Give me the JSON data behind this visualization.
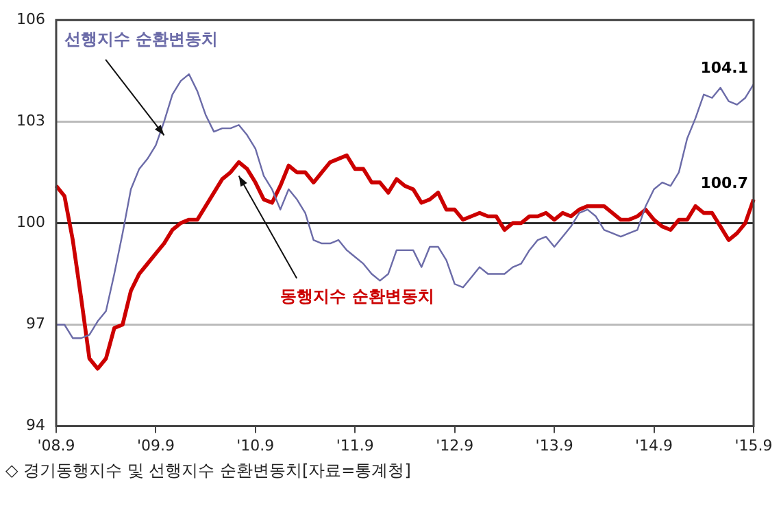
{
  "chart_data": {
    "type": "line",
    "categories": [
      "'08.9",
      null,
      null,
      null,
      null,
      null,
      null,
      null,
      null,
      null,
      null,
      null,
      "'09.9",
      null,
      null,
      null,
      null,
      null,
      null,
      null,
      null,
      null,
      null,
      null,
      "'10.9",
      null,
      null,
      null,
      null,
      null,
      null,
      null,
      null,
      null,
      null,
      null,
      "'11.9",
      null,
      null,
      null,
      null,
      null,
      null,
      null,
      null,
      null,
      null,
      null,
      "'12.9",
      null,
      null,
      null,
      null,
      null,
      null,
      null,
      null,
      null,
      null,
      null,
      "'13.9",
      null,
      null,
      null,
      null,
      null,
      null,
      null,
      null,
      null,
      null,
      null,
      "'14.9",
      null,
      null,
      null,
      null,
      null,
      null,
      null,
      null,
      null,
      null,
      null,
      "'15.9"
    ],
    "series": [
      {
        "name": "선행지수 순환변동치",
        "color": "#6b6ba8",
        "values": [
          97.0,
          97.0,
          96.6,
          96.6,
          96.7,
          97.1,
          97.4,
          98.5,
          99.7,
          101.0,
          101.6,
          101.9,
          102.3,
          103.0,
          103.8,
          104.2,
          104.4,
          103.9,
          103.2,
          102.7,
          102.8,
          102.8,
          102.9,
          102.6,
          102.2,
          101.4,
          101.0,
          100.4,
          101.0,
          100.7,
          100.3,
          99.5,
          99.4,
          99.4,
          99.5,
          99.2,
          99.0,
          98.8,
          98.5,
          98.3,
          98.5,
          99.2,
          99.2,
          99.2,
          98.7,
          99.3,
          99.3,
          98.9,
          98.2,
          98.1,
          98.4,
          98.7,
          98.5,
          98.5,
          98.5,
          98.7,
          98.8,
          99.2,
          99.5,
          99.6,
          99.3,
          99.6,
          99.9,
          100.3,
          100.4,
          100.2,
          99.8,
          99.7,
          99.6,
          99.7,
          99.8,
          100.5,
          101.0,
          101.2,
          101.1,
          101.5,
          102.5,
          103.1,
          103.8,
          103.7,
          104.0,
          103.6,
          103.5,
          103.7,
          104.1
        ],
        "value_labels": [
          null,
          null,
          null,
          null,
          null,
          null,
          null,
          null,
          null,
          null,
          null,
          null,
          null,
          null,
          null,
          null,
          null,
          null,
          null,
          null,
          null,
          null,
          null,
          null,
          null,
          null,
          null,
          null,
          null,
          null,
          null,
          null,
          null,
          null,
          null,
          null,
          null,
          null,
          null,
          null,
          null,
          null,
          null,
          null,
          null,
          null,
          null,
          null,
          null,
          null,
          null,
          null,
          null,
          null,
          null,
          null,
          null,
          null,
          null,
          null,
          null,
          null,
          null,
          null,
          null,
          null,
          null,
          null,
          null,
          null,
          null,
          null,
          null,
          null,
          null,
          null,
          null,
          null,
          null,
          null,
          null,
          null,
          null,
          null,
          "104.1"
        ]
      },
      {
        "name": "동행지수 순환변동치",
        "color": "#cc0000",
        "values": [
          101.1,
          100.8,
          99.5,
          97.8,
          96.0,
          95.7,
          96.0,
          96.9,
          97.0,
          98.0,
          98.5,
          98.8,
          99.1,
          99.4,
          99.8,
          100.0,
          100.1,
          100.1,
          100.5,
          100.9,
          101.3,
          101.5,
          101.8,
          101.6,
          101.2,
          100.7,
          100.6,
          101.1,
          101.7,
          101.5,
          101.5,
          101.2,
          101.5,
          101.8,
          101.9,
          102.0,
          101.6,
          101.6,
          101.2,
          101.2,
          100.9,
          101.3,
          101.1,
          101.0,
          100.6,
          100.7,
          100.9,
          100.4,
          100.4,
          100.1,
          100.2,
          100.3,
          100.2,
          100.2,
          99.8,
          100.0,
          100.0,
          100.2,
          100.2,
          100.3,
          100.1,
          100.3,
          100.2,
          100.4,
          100.5,
          100.5,
          100.5,
          100.3,
          100.1,
          100.1,
          100.2,
          100.4,
          100.1,
          99.9,
          99.8,
          100.1,
          100.1,
          100.5,
          100.3,
          100.3,
          99.9,
          99.5,
          99.7,
          100.0,
          100.7
        ],
        "value_labels": [
          null,
          null,
          null,
          null,
          null,
          null,
          null,
          null,
          null,
          null,
          null,
          null,
          null,
          null,
          null,
          null,
          null,
          null,
          null,
          null,
          null,
          null,
          null,
          null,
          null,
          null,
          null,
          null,
          null,
          null,
          null,
          null,
          null,
          null,
          null,
          null,
          null,
          null,
          null,
          null,
          null,
          null,
          null,
          null,
          null,
          null,
          null,
          null,
          null,
          null,
          null,
          null,
          null,
          null,
          null,
          null,
          null,
          null,
          null,
          null,
          null,
          null,
          null,
          null,
          null,
          null,
          null,
          null,
          null,
          null,
          null,
          null,
          null,
          null,
          null,
          null,
          null,
          null,
          null,
          null,
          null,
          null,
          null,
          null,
          "100.7"
        ]
      }
    ],
    "ylim": [
      94,
      106
    ],
    "yticks": [
      94,
      97,
      100,
      103,
      106
    ],
    "grid": "y",
    "ref_lines": [
      {
        "axis": "y",
        "value": 100,
        "color": "#000000"
      }
    ],
    "legend": false,
    "marker": "none",
    "line_style": "solid",
    "annotations": [
      "◇ 경기동행지수 및 선행지수 순환변동치[자료=통계청]"
    ]
  }
}
